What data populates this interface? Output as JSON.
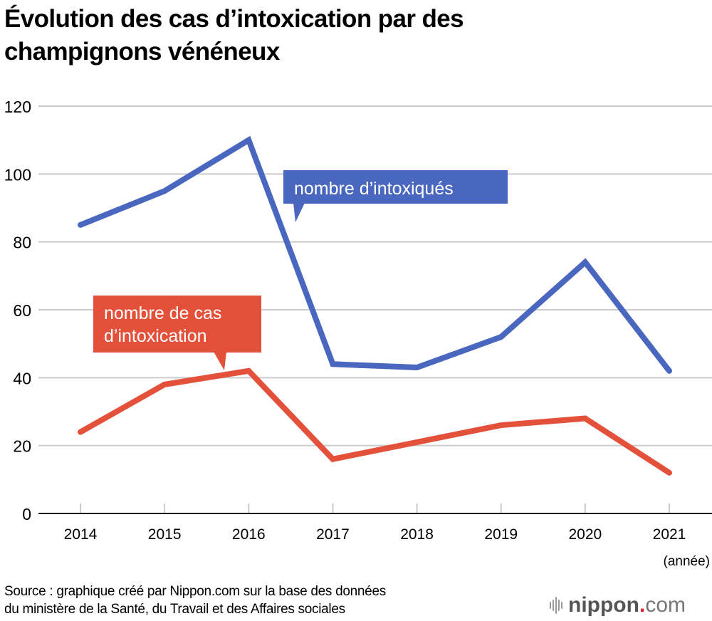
{
  "chart_data": {
    "type": "line",
    "title": "Évolution des cas d’intoxication par des champignons vénéneux",
    "title_lines": [
      "Évolution des cas d’intoxication par des",
      "champignons vénéneux"
    ],
    "xlabel": "(année)",
    "ylabel": "",
    "x": [
      "2014",
      "2015",
      "2016",
      "2017",
      "2018",
      "2019",
      "2020",
      "2021"
    ],
    "ylim": [
      0,
      120
    ],
    "yticks": [
      "0",
      "20",
      "40",
      "60",
      "80",
      "100",
      "120"
    ],
    "ytick_values": [
      0,
      20,
      40,
      60,
      80,
      100,
      120
    ],
    "grid": true,
    "series": [
      {
        "name": "nombre d’intoxiqués",
        "color": "#4a67bf",
        "values": [
          85,
          95,
          110,
          44,
          43,
          52,
          74,
          42
        ]
      },
      {
        "name": "nombre de cas d’intoxication",
        "name_lines": [
          "nombre de cas",
          "d’intoxication"
        ],
        "color": "#e4513a",
        "values": [
          24,
          38,
          42,
          16,
          21,
          26,
          28,
          12
        ]
      }
    ],
    "legend": "inline callouts"
  },
  "source": {
    "line1": "Source : graphique créé par Nippon.com sur la base des données",
    "line2": "du ministère de la Santé, du Travail et des Affaires sociales"
  },
  "logo": {
    "brand": "nippon",
    "dot": ".",
    "suffix": "com",
    "accent": "#e0242b"
  }
}
